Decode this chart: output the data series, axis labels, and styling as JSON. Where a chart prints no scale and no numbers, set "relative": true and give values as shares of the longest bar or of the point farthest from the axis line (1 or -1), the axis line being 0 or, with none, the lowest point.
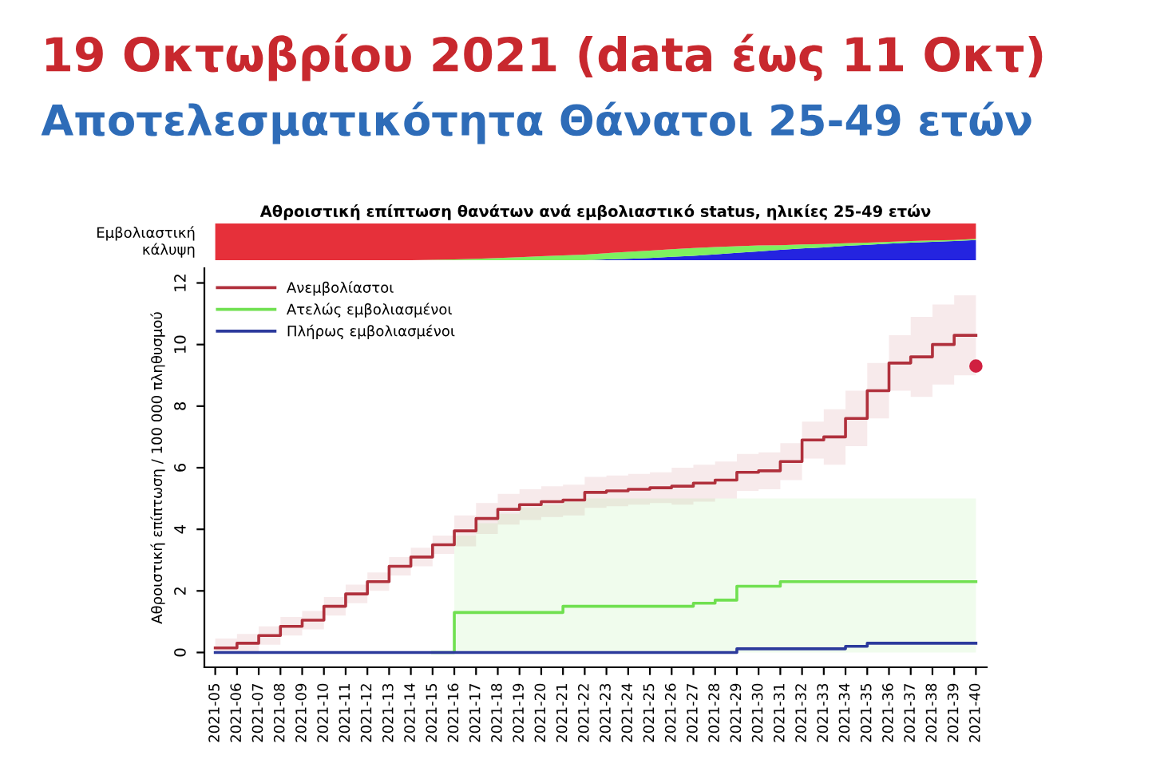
{
  "chart_data": [
    {
      "type": "area",
      "title": "19 Οκτωβρίου 2021 (data έως 11 Οκτ)",
      "subtitle": "Αποτελεσματικότητα Θάνατοι 25-49 ετών",
      "annotations": [
        "Αθροιστική επίπτωση θανάτων ανά εμβολιαστικό status, ηλικίες 25-49 ετών"
      ],
      "ylabel": "Εμβολιαστική\nκάλυψη",
      "stacked": true,
      "relative": true,
      "categories": [
        null,
        null,
        null,
        null,
        null,
        null,
        null,
        null,
        null,
        null,
        null,
        null,
        null,
        null,
        null,
        null,
        null,
        null,
        null,
        null,
        null,
        null,
        null,
        null,
        null,
        null,
        null,
        null,
        null,
        null,
        null,
        null,
        null,
        null,
        null,
        null
      ],
      "series": [
        {
          "color": "#2424e0",
          "values": [
            null,
            null,
            null,
            null,
            null,
            null,
            null,
            null,
            null,
            null,
            null,
            null,
            null,
            null,
            null,
            null,
            null,
            0,
            0.02,
            0.04,
            0.06,
            0.09,
            0.12,
            0.16,
            0.2,
            0.24,
            0.28,
            0.32,
            0.35,
            0.39,
            0.42,
            0.45,
            0.48,
            0.5,
            0.52,
            0.55
          ]
        },
        {
          "color": "#7ef060",
          "values": [
            null,
            null,
            null,
            null,
            null,
            null,
            null,
            null,
            null,
            0,
            0.01,
            0.02,
            0.04,
            0.06,
            0.08,
            0.11,
            0.13,
            0.15,
            0.17,
            0.19,
            0.2,
            0.21,
            0.21,
            0.2,
            0.18,
            0.16,
            0.13,
            0.11,
            0.09,
            0.07,
            0.06,
            0.05,
            0.04,
            0.04,
            0.03,
            0.03
          ]
        },
        {
          "color": "#e6303a",
          "values": [
            1,
            1,
            1,
            1,
            1,
            1,
            1,
            1,
            1,
            1,
            0.99,
            0.98,
            0.96,
            0.94,
            0.92,
            0.89,
            0.87,
            0.85,
            0.81,
            0.77,
            0.74,
            0.7,
            0.67,
            0.64,
            0.62,
            0.6,
            0.59,
            0.57,
            0.56,
            0.54,
            0.52,
            0.5,
            0.48,
            0.46,
            0.45,
            0.42
          ]
        }
      ]
    },
    {
      "type": "step",
      "ylabel": "Αθροιστική επίπτωση / 100 000 πληθυσμού",
      "ylim": [
        -0.48,
        12.48
      ],
      "yticks": [
        0,
        2,
        4,
        6,
        8,
        10,
        12
      ],
      "legend": "top left",
      "grid": false,
      "categories": [
        "2021-05",
        "2021-06",
        "2021-07",
        "2021-08",
        "2021-09",
        "2021-10",
        "2021-11",
        "2021-12",
        "2021-13",
        "2021-14",
        "2021-15",
        "2021-16",
        "2021-17",
        "2021-18",
        "2021-19",
        "2021-20",
        "2021-21",
        "2021-22",
        "2021-23",
        "2021-24",
        "2021-25",
        "2021-26",
        "2021-27",
        "2021-28",
        "2021-29",
        "2021-30",
        "2021-31",
        "2021-32",
        "2021-33",
        "2021-34",
        "2021-35",
        "2021-36",
        "2021-37",
        "2021-38",
        "2021-39",
        "2021-40"
      ],
      "series": [
        {
          "name": "Ανεμβολίαστοι",
          "color": "#b0303c",
          "values": [
            0.15,
            0.3,
            0.55,
            0.85,
            1.05,
            1.5,
            1.9,
            2.3,
            2.8,
            3.1,
            3.5,
            3.95,
            4.35,
            4.65,
            4.8,
            4.9,
            4.95,
            5.2,
            5.25,
            5.3,
            5.35,
            5.4,
            5.5,
            5.6,
            5.85,
            5.9,
            6.2,
            6.9,
            7.0,
            7.6,
            8.5,
            9.4,
            9.6,
            10.0,
            10.3,
            10.3
          ],
          "upper": [
            0.45,
            0.6,
            0.85,
            1.15,
            1.35,
            1.8,
            2.2,
            2.6,
            3.1,
            3.4,
            3.8,
            4.45,
            4.85,
            5.15,
            5.3,
            5.4,
            5.45,
            5.7,
            5.75,
            5.8,
            5.85,
            6.0,
            6.1,
            6.2,
            6.45,
            6.5,
            6.8,
            7.5,
            7.9,
            8.5,
            9.4,
            10.3,
            10.9,
            11.3,
            11.6,
            11.6
          ],
          "lower": [
            0,
            0,
            0.25,
            0.55,
            0.75,
            1.2,
            1.6,
            2.0,
            2.5,
            2.8,
            3.2,
            3.45,
            3.85,
            4.15,
            4.3,
            4.4,
            4.45,
            4.7,
            4.75,
            4.8,
            4.85,
            4.8,
            4.9,
            5.0,
            5.25,
            5.3,
            5.6,
            6.3,
            6.1,
            6.7,
            7.6,
            8.5,
            8.3,
            8.7,
            9.0,
            9.0
          ]
        },
        {
          "name": "Ατελώς εμβολιασμένοι",
          "color": "#70e050",
          "values": [
            null,
            null,
            null,
            null,
            null,
            null,
            null,
            null,
            null,
            null,
            0,
            1.3,
            1.3,
            1.3,
            1.3,
            1.3,
            1.5,
            1.5,
            1.5,
            1.5,
            1.5,
            1.5,
            1.6,
            1.7,
            2.15,
            2.15,
            2.3,
            2.3,
            2.3,
            2.3,
            2.3,
            2.3,
            2.3,
            2.3,
            2.3,
            2.3
          ],
          "upper": [
            null,
            null,
            null,
            null,
            null,
            null,
            null,
            null,
            null,
            null,
            null,
            3.8,
            4.2,
            4.5,
            4.7,
            4.8,
            4.9,
            5.0,
            5.0,
            5.0,
            5.0,
            5.0,
            5.0,
            5.0,
            5.0,
            5.0,
            5.0,
            5.0,
            5.0,
            5.0,
            5.0,
            5.0,
            5.0,
            5.0,
            5.0,
            5.0
          ],
          "lower": [
            null,
            null,
            null,
            null,
            null,
            null,
            null,
            null,
            null,
            null,
            null,
            0,
            0,
            0,
            0,
            0,
            0,
            0,
            0,
            0,
            0,
            0,
            0,
            0,
            0,
            0,
            0,
            0,
            0,
            0,
            0,
            0,
            0,
            0,
            0,
            0
          ]
        },
        {
          "name": "Πλήρως εμβολιασμένοι",
          "color": "#2c3a9c",
          "values": [
            0,
            0,
            0,
            0,
            0,
            0,
            0,
            0,
            0,
            0,
            0,
            0,
            0,
            0,
            0,
            0,
            0,
            0,
            0,
            0,
            0,
            0,
            0,
            0,
            0.12,
            0.12,
            0.12,
            0.12,
            0.12,
            0.2,
            0.3,
            0.3,
            0.3,
            0.3,
            0.3,
            0.3
          ]
        },
        {
          "type": "scatter",
          "color": "#d02040",
          "marker": "circle",
          "values": [
            null,
            null,
            null,
            null,
            null,
            null,
            null,
            null,
            null,
            null,
            null,
            null,
            null,
            null,
            null,
            null,
            null,
            null,
            null,
            null,
            null,
            null,
            null,
            null,
            null,
            null,
            null,
            null,
            null,
            null,
            null,
            null,
            null,
            null,
            null,
            9.3
          ]
        }
      ]
    }
  ]
}
